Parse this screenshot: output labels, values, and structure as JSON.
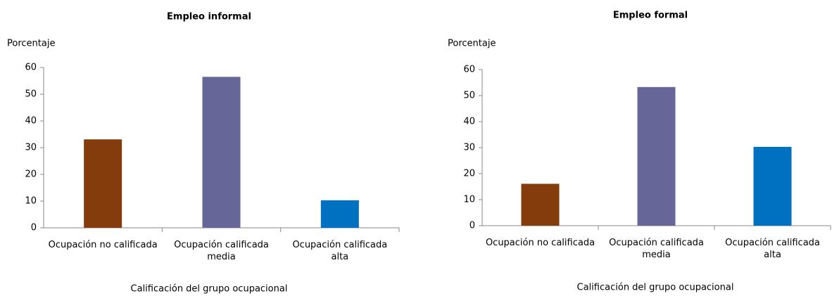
{
  "chart_data": [
    {
      "type": "bar",
      "title": "Empleo informal",
      "y_label": "Porcentaje",
      "x_label": "Calificación del grupo ocupacional",
      "categories": [
        "Ocupación no calificada",
        "Ocupación calificada media",
        "Ocupación calificada alta"
      ],
      "values": [
        33.1,
        56.5,
        10.3
      ],
      "colors": [
        "#843c0c",
        "#666699",
        "#0070c0"
      ],
      "ylim": [
        0,
        60
      ],
      "yticks": [
        0,
        10,
        20,
        30,
        40,
        50,
        60
      ]
    },
    {
      "type": "bar",
      "title": "Empleo formal",
      "y_label": "Porcentaje",
      "x_label": "Calificación del grupo ocupacional",
      "categories": [
        "Ocupación no calificada",
        "Ocupación calificada media",
        "Ocupación calificada alta"
      ],
      "values": [
        16.1,
        53.3,
        30.3
      ],
      "colors": [
        "#843c0c",
        "#666699",
        "#0070c0"
      ],
      "ylim": [
        0,
        60
      ],
      "yticks": [
        0,
        10,
        20,
        30,
        40,
        50,
        60
      ]
    }
  ]
}
